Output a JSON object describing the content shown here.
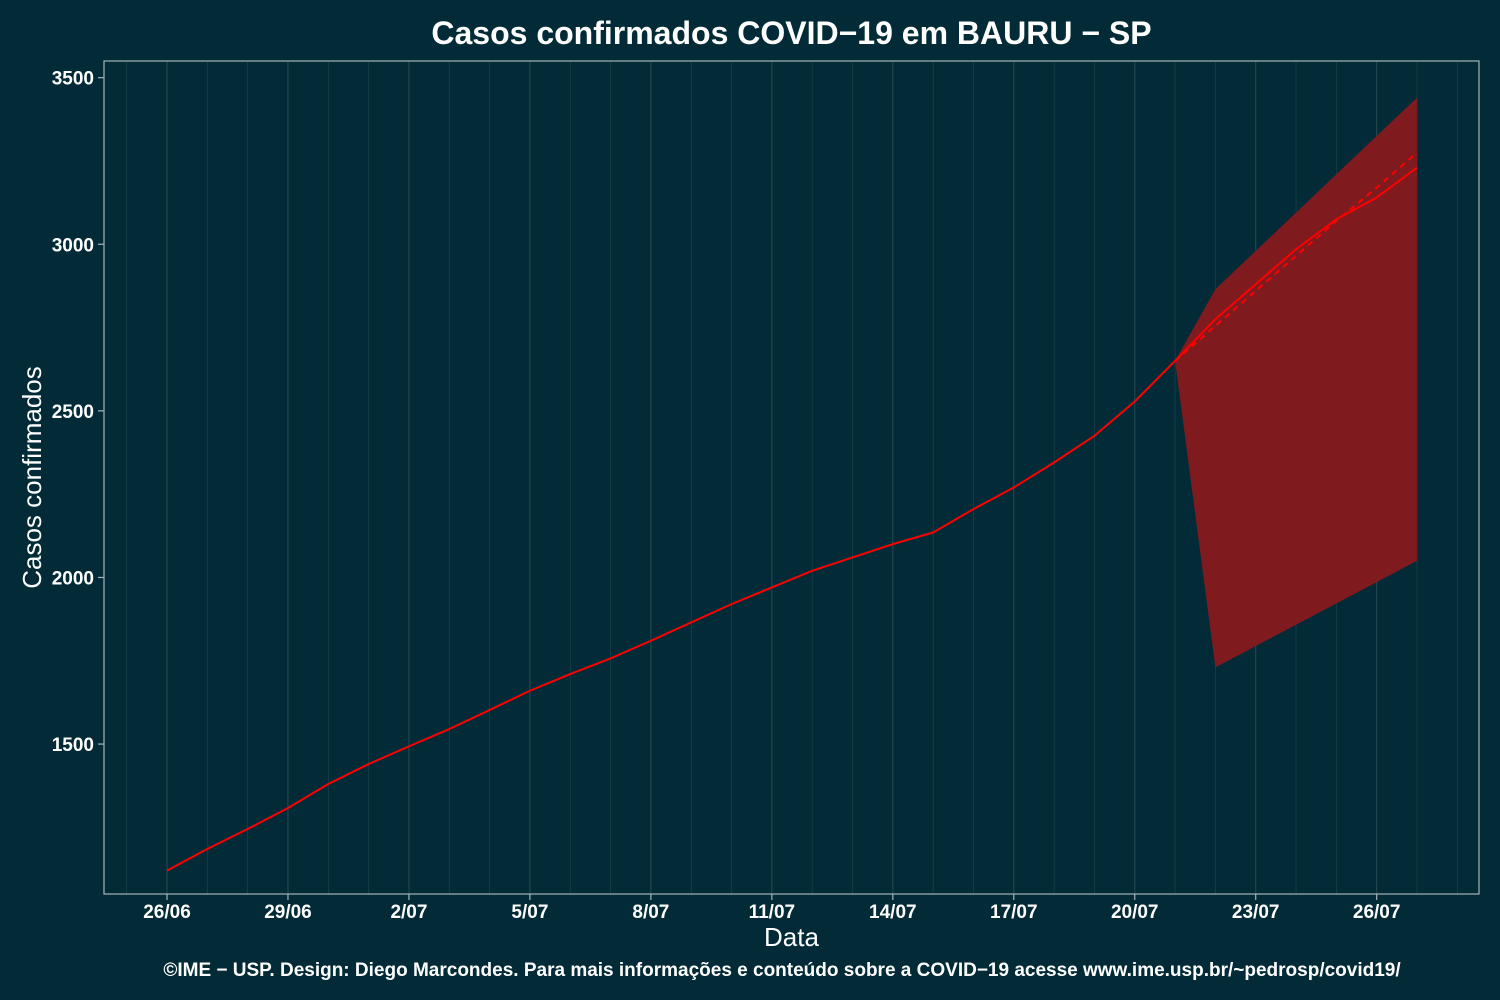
{
  "chart_data": {
    "type": "line",
    "title": "Casos confirmados COVID−19 em BAURU − SP",
    "xlabel": "Data",
    "ylabel": "Casos confirmados",
    "caption": "©IME − USP. Design: Diego Marcondes. Para mais informações e conteúdo sobre a COVID−19 acesse www.ime.usp.br/~pedrosp/covid19/",
    "x_dates": [
      "26/06",
      "27/06",
      "28/06",
      "29/06",
      "30/06",
      "1/07",
      "2/07",
      "3/07",
      "4/07",
      "5/07",
      "6/07",
      "7/07",
      "8/07",
      "9/07",
      "10/07",
      "11/07",
      "12/07",
      "13/07",
      "14/07",
      "15/07",
      "16/07",
      "17/07",
      "18/07",
      "19/07",
      "20/07",
      "21/07",
      "22/07",
      "23/07",
      "24/07",
      "25/07",
      "26/07",
      "27/07"
    ],
    "x_tick_labels": [
      "26/06",
      "29/06",
      "2/07",
      "5/07",
      "8/07",
      "11/07",
      "14/07",
      "17/07",
      "20/07",
      "23/07",
      "26/07"
    ],
    "y_ticks": [
      1500,
      2000,
      2500,
      3000,
      3500
    ],
    "ylim": [
      1050,
      3550
    ],
    "grid": true,
    "series": [
      {
        "style": "solid",
        "x": [
          "26/06",
          "27/06",
          "28/06",
          "29/06",
          "30/06",
          "1/07",
          "2/07",
          "3/07",
          "4/07",
          "5/07",
          "6/07",
          "7/07",
          "8/07",
          "9/07",
          "10/07",
          "11/07",
          "12/07",
          "13/07",
          "14/07",
          "15/07",
          "16/07",
          "17/07",
          "18/07",
          "19/07",
          "20/07",
          "21/07",
          "22/07",
          "23/07",
          "24/07",
          "25/07",
          "26/07",
          "27/07"
        ],
        "values": [
          1120,
          1185,
          1245,
          1308,
          1380,
          1440,
          1493,
          1545,
          1602,
          1660,
          1710,
          1757,
          1810,
          1865,
          1920,
          1970,
          2020,
          2060,
          2100,
          2135,
          2205,
          2270,
          2345,
          2425,
          2528,
          2650,
          2775,
          2880,
          2985,
          3075,
          3140,
          3230
        ]
      },
      {
        "style": "dashed",
        "x": [
          "21/07",
          "22/07",
          "23/07",
          "24/07",
          "25/07",
          "26/07",
          "27/07"
        ],
        "values": [
          2650,
          2755,
          2860,
          2965,
          3070,
          3170,
          3275
        ]
      }
    ],
    "band": {
      "x": [
        "21/07",
        "22/07",
        "27/07"
      ],
      "upper": [
        2650,
        2865,
        3440
      ],
      "lower": [
        2650,
        1730,
        2050
      ]
    },
    "colors": {
      "background": "#022b37",
      "line": "#ff0000",
      "band": "#7f1a1f",
      "grid": "#22464f",
      "panel_border": "#a5b4b8",
      "text": "#ffffff"
    }
  }
}
